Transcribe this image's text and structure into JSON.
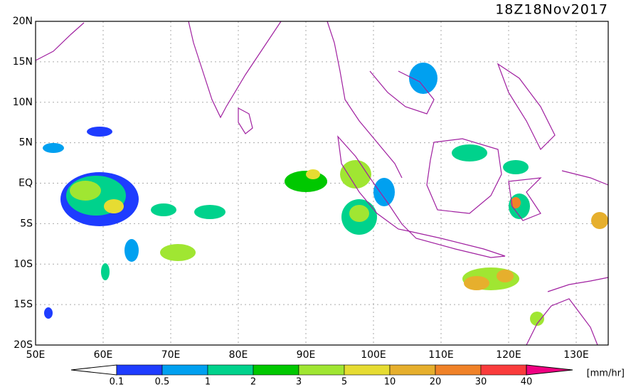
{
  "title": "18Z18Nov2017",
  "lat_labels": [
    "20N",
    "15N",
    "10N",
    "5N",
    "EQ",
    "5S",
    "10S",
    "15S",
    "20S"
  ],
  "lon_labels": [
    "50E",
    "60E",
    "70E",
    "80E",
    "90E",
    "100E",
    "110E",
    "120E",
    "130E"
  ],
  "colorbar": {
    "labels": [
      "0.1",
      "0.5",
      "1",
      "2",
      "3",
      "5",
      "10",
      "20",
      "30",
      "40"
    ],
    "colors": [
      "#ffffff",
      "#1e3cff",
      "#00a0f0",
      "#00d28c",
      "#00c800",
      "#a0e632",
      "#e6dc32",
      "#e6af2d",
      "#f08228",
      "#fa3c3c",
      "#f00082"
    ],
    "unit": "[mm/hr]"
  }
}
